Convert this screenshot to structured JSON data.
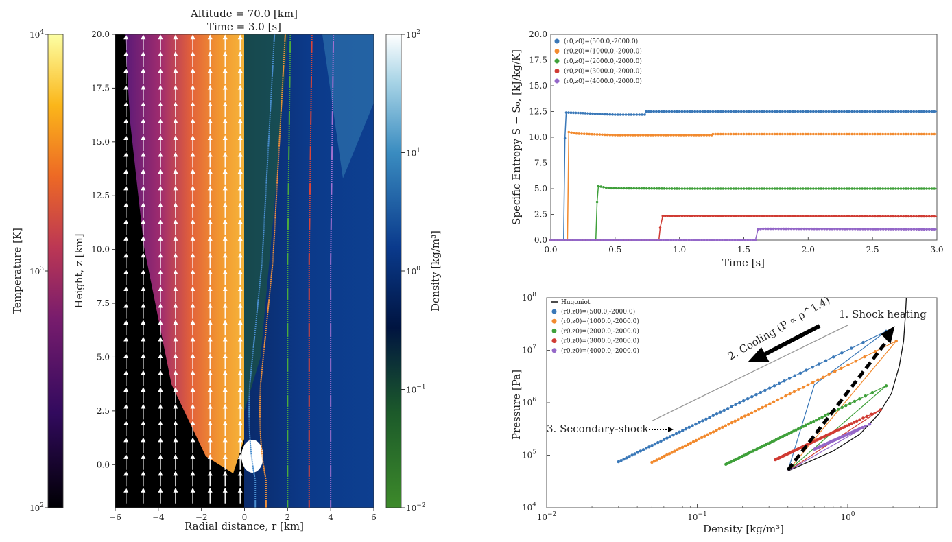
{
  "chart_data": [
    {
      "type": "heatmap",
      "title_line1": "Altitude =  70.0 [km]",
      "title_line2": "Time =  3.0 [s]",
      "xlabel": "Radial distance, r [km]",
      "ylabel": "Height, z [km]",
      "xlim": [
        -6,
        6
      ],
      "ylim": [
        -2,
        20
      ],
      "xticks": [
        "−6",
        "−4",
        "−2",
        "0",
        "2",
        "4",
        "6"
      ],
      "xtick_values": [
        -6,
        -4,
        -2,
        0,
        2,
        4,
        6
      ],
      "yticks": [
        "0.0",
        "2.5",
        "5.0",
        "7.5",
        "10.0",
        "12.5",
        "15.0",
        "17.5",
        "20.0"
      ],
      "ytick_values": [
        0,
        2.5,
        5,
        7.5,
        10,
        12.5,
        15,
        17.5,
        20
      ],
      "left_colorbar": {
        "label": "Temperature [K]",
        "ticks": [
          "10",
          "10",
          "10"
        ],
        "exponents": [
          "4",
          "3",
          "2"
        ],
        "range": [
          100,
          10000
        ],
        "colormap": "inferno"
      },
      "right_colorbar": {
        "label": "Density  [kg/m³]",
        "ticks": [
          "10",
          "10",
          "10",
          "10",
          "10"
        ],
        "exponents": [
          "2",
          "1",
          "0",
          "−1",
          "−2"
        ],
        "range": [
          0.01,
          100
        ],
        "colormap": "ocean-like"
      },
      "velocity_arrow_r": [
        -5.5,
        -4.7,
        -3.9,
        -3.2,
        -2.4,
        -1.6,
        -0.9,
        -0.2
      ],
      "streamlines": [
        {
          "r0": 0.5,
          "color": "#4a8fd0"
        },
        {
          "r0": 1.0,
          "color": "#f0903a"
        },
        {
          "r0": 2.0,
          "color": "#4caa3c"
        },
        {
          "r0": 3.0,
          "color": "#d9443a"
        },
        {
          "r0": 4.0,
          "color": "#a070d0"
        }
      ]
    },
    {
      "type": "line",
      "xlabel": "Time [s]",
      "ylabel": "Specific Entropy S − S₀, [kJ/kg/K]",
      "xlim": [
        0,
        3
      ],
      "ylim": [
        0,
        20
      ],
      "xticks": [
        "0.0",
        "0.5",
        "1.0",
        "1.5",
        "2.0",
        "2.5",
        "3.0"
      ],
      "xtick_values": [
        0,
        0.5,
        1,
        1.5,
        2,
        2.5,
        3
      ],
      "yticks": [
        "0.0",
        "2.5",
        "5.0",
        "7.5",
        "10.0",
        "12.5",
        "15.0",
        "17.5",
        "20.0"
      ],
      "ytick_values": [
        0,
        2.5,
        5,
        7.5,
        10,
        12.5,
        15,
        17.5,
        20
      ],
      "legend_position": "top-left",
      "series": [
        {
          "name": "(r0,z0)=(500.0,-2000.0)",
          "color": "#3a78b8",
          "x": [
            0,
            0.1,
            0.11,
            0.12,
            0.25,
            0.4,
            0.5,
            0.73,
            0.74,
            1.5,
            3.0
          ],
          "y": [
            0,
            0,
            9.9,
            12.4,
            12.35,
            12.25,
            12.2,
            12.2,
            12.5,
            12.5,
            12.5
          ]
        },
        {
          "name": "(r0,z0)=(1000.0,-2000.0)",
          "color": "#f28a2e",
          "x": [
            0,
            0.13,
            0.14,
            0.2,
            0.5,
            1.25,
            1.26,
            3.0
          ],
          "y": [
            0,
            0,
            10.5,
            10.35,
            10.2,
            10.2,
            10.3,
            10.3
          ]
        },
        {
          "name": "(r0,z0)=(2000.0,-2000.0)",
          "color": "#3fa03a",
          "x": [
            0,
            0.35,
            0.36,
            0.37,
            0.45,
            1.0,
            3.0
          ],
          "y": [
            0,
            0,
            3.7,
            5.25,
            5.05,
            5.0,
            5.0
          ]
        },
        {
          "name": "(r0,z0)=(3000.0,-2000.0)",
          "color": "#d03b33",
          "x": [
            0,
            0.84,
            0.85,
            0.87,
            1.0,
            3.0
          ],
          "y": [
            0,
            0,
            1.2,
            2.35,
            2.35,
            2.3
          ]
        },
        {
          "name": "(r0,z0)=(4000.0,-2000.0)",
          "color": "#9467c8",
          "x": [
            0,
            1.59,
            1.61,
            1.65,
            3.0
          ],
          "y": [
            0,
            0,
            1.05,
            1.1,
            1.05
          ]
        }
      ]
    },
    {
      "type": "scatter",
      "xscale": "log",
      "yscale": "log",
      "xlabel": "Density [kg/m³]",
      "ylabel": "Pressure [Pa]",
      "xlim": [
        0.01,
        3.9
      ],
      "ylim": [
        10000,
        100000000
      ],
      "xticks": [
        "10",
        "10",
        "10"
      ],
      "xtick_exponents": [
        "−2",
        "−1",
        "0"
      ],
      "xtick_values": [
        0.01,
        0.1,
        1
      ],
      "yticks": [
        "10",
        "10",
        "10",
        "10",
        "10"
      ],
      "ytick_exponents": [
        "4",
        "5",
        "6",
        "7",
        "8"
      ],
      "ytick_values": [
        10000,
        100000,
        1000000,
        10000000,
        100000000
      ],
      "legend_position": "top-left",
      "hugoniot": {
        "name": "Hugoniot",
        "color": "#111111",
        "x": [
          0.4,
          0.8,
          1.2,
          1.6,
          1.95,
          2.2,
          2.35,
          2.42,
          2.45
        ],
        "y": [
          50000,
          120000,
          250000,
          600000,
          1500000,
          5000000,
          15000000,
          50000000,
          100000000
        ]
      },
      "series": [
        {
          "name": "(r0,z0)=(500.0,-2000.0)",
          "color": "#3a78b8",
          "x": [
            0.4,
            0.6,
            1.8,
            0.03
          ],
          "y": [
            50000,
            2200000,
            23000000,
            75000
          ]
        },
        {
          "name": "(r0,z0)=(1000.0,-2000.0)",
          "color": "#f28a2e",
          "x": [
            0.4,
            2.1,
            0.05
          ],
          "y": [
            50000,
            15000000,
            73000
          ]
        },
        {
          "name": "(r0,z0)=(2000.0,-2000.0)",
          "color": "#3fa03a",
          "x": [
            0.4,
            1.8,
            0.155
          ],
          "y": [
            50000,
            2100000,
            67000
          ]
        },
        {
          "name": "(r0,z0)=(3000.0,-2000.0)",
          "color": "#d03b33",
          "x": [
            0.4,
            1.65,
            0.33
          ],
          "y": [
            50000,
            730000,
            82000
          ]
        },
        {
          "name": "(r0,z0)=(4000.0,-2000.0)",
          "color": "#9467c8",
          "x": [
            0.4,
            1.4,
            0.6
          ],
          "y": [
            50000,
            390000,
            130000
          ]
        }
      ],
      "reference_line": {
        "x": [
          0.05,
          1.0
        ],
        "y": [
          450000,
          30000000
        ]
      },
      "annotations": {
        "shock": "1. Shock heating",
        "cooling": "2. Cooling (P ∝ ρ^1.4)",
        "secondary": "3. Secondary-shock"
      }
    }
  ]
}
